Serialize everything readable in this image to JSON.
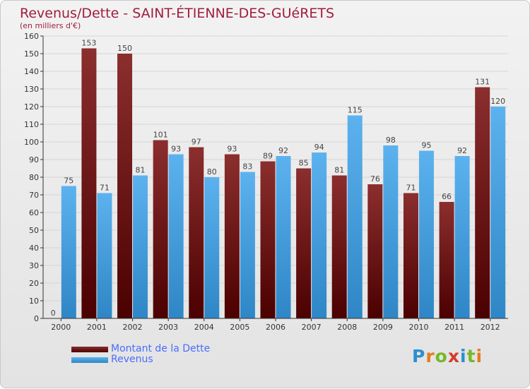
{
  "header": {
    "title": "Revenus/Dette - SAINT-ÉTIENNE-DES-GUéRETS",
    "subtitle": "(en milliers d'€)"
  },
  "legend": {
    "dette_label": "Montant de la Dette",
    "revenus_label": "Revenus"
  },
  "logo": {
    "text": "Proxiti"
  },
  "colors": {
    "dette": "#6e0f14",
    "revenus": "#4aa6e8",
    "title": "#a11d3f",
    "legend_text": "#4a6cff",
    "value_label": "#444444"
  },
  "chart_data": {
    "type": "bar",
    "categories": [
      "2000",
      "2001",
      "2002",
      "2003",
      "2004",
      "2005",
      "2006",
      "2007",
      "2008",
      "2009",
      "2010",
      "2011",
      "2012"
    ],
    "series": [
      {
        "name": "Montant de la Dette",
        "values": [
          0,
          153,
          150,
          101,
          97,
          93,
          89,
          85,
          81,
          76,
          71,
          66,
          131
        ]
      },
      {
        "name": "Revenus",
        "values": [
          75,
          71,
          81,
          93,
          80,
          83,
          92,
          94,
          115,
          98,
          95,
          92,
          120
        ]
      }
    ],
    "ylim": [
      0,
      160
    ],
    "yticks": [
      0,
      10,
      20,
      30,
      40,
      50,
      60,
      70,
      80,
      90,
      100,
      110,
      120,
      130,
      140,
      150,
      160
    ],
    "grid": true,
    "legend_position": "bottom-left",
    "title": "Revenus/Dette - SAINT-ÉTIENNE-DES-GUéRETS",
    "subtitle": "(en milliers d'€)",
    "xlabel": "",
    "ylabel": ""
  }
}
